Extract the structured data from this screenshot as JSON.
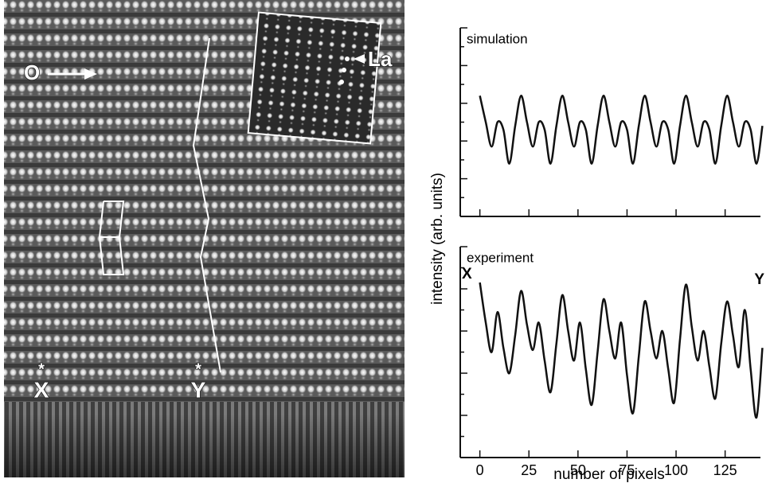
{
  "image": {
    "oxygen_label": "O",
    "lanthanum_label": "La",
    "start_label": "X",
    "end_label": "Y",
    "marker": "*"
  },
  "chart_data": [
    {
      "type": "line",
      "title": "simulation",
      "color": "#111111",
      "x": [
        0,
        3,
        6,
        9,
        12,
        15,
        18,
        21,
        24,
        27,
        30,
        33,
        36,
        39,
        42,
        45,
        48,
        51,
        54,
        57,
        60,
        63,
        66,
        69,
        72,
        75,
        78,
        81,
        84,
        87,
        90,
        93,
        96,
        99,
        102,
        105,
        108,
        111,
        114,
        117,
        120,
        123,
        126,
        129,
        132,
        135,
        138,
        141,
        144
      ],
      "values": [
        6.4,
        5.0,
        3.7,
        5.0,
        4.6,
        2.8,
        4.8,
        6.4,
        5.0,
        3.7,
        5.0,
        4.6,
        2.8,
        4.8,
        6.4,
        5.0,
        3.7,
        5.0,
        4.6,
        2.8,
        4.8,
        6.4,
        5.0,
        3.7,
        5.0,
        4.6,
        2.8,
        4.8,
        6.4,
        5.0,
        3.7,
        5.0,
        4.6,
        2.8,
        4.8,
        6.4,
        5.0,
        3.7,
        5.0,
        4.6,
        2.8,
        4.8,
        6.4,
        5.0,
        3.7,
        5.0,
        4.6,
        2.8,
        4.8
      ],
      "xlim": [
        -10,
        143
      ],
      "ylim": [
        0,
        10
      ]
    },
    {
      "type": "line",
      "title": "experiment",
      "color": "#111111",
      "annotations": [
        "X",
        "Y"
      ],
      "xlabel": "number of pixels",
      "ylabel": "intensity (arb. units)",
      "x": [
        0,
        3,
        6,
        9,
        12,
        15,
        18,
        21,
        24,
        27,
        30,
        33,
        36,
        39,
        42,
        45,
        48,
        51,
        54,
        57,
        60,
        63,
        66,
        69,
        72,
        75,
        78,
        81,
        84,
        87,
        90,
        93,
        96,
        99,
        102,
        105,
        108,
        111,
        114,
        117,
        120,
        123,
        126,
        129,
        132,
        135,
        138,
        141,
        144
      ],
      "values": [
        8.3,
        6.4,
        5.0,
        6.9,
        5.2,
        4.0,
        5.8,
        7.9,
        6.3,
        5.1,
        6.4,
        4.6,
        3.1,
        5.4,
        7.7,
        6.0,
        4.6,
        6.4,
        4.2,
        2.5,
        5.0,
        7.5,
        6.0,
        4.7,
        6.4,
        3.9,
        2.1,
        4.8,
        7.4,
        6.0,
        4.7,
        6.0,
        4.2,
        2.6,
        5.6,
        8.2,
        6.2,
        4.6,
        6.0,
        4.3,
        2.8,
        5.4,
        7.4,
        5.8,
        4.3,
        7.0,
        4.2,
        1.9,
        5.2
      ],
      "xlim": [
        -10,
        143
      ],
      "ylim": [
        0,
        10
      ],
      "xticks": [
        0,
        25,
        50,
        75,
        100,
        125
      ]
    }
  ]
}
